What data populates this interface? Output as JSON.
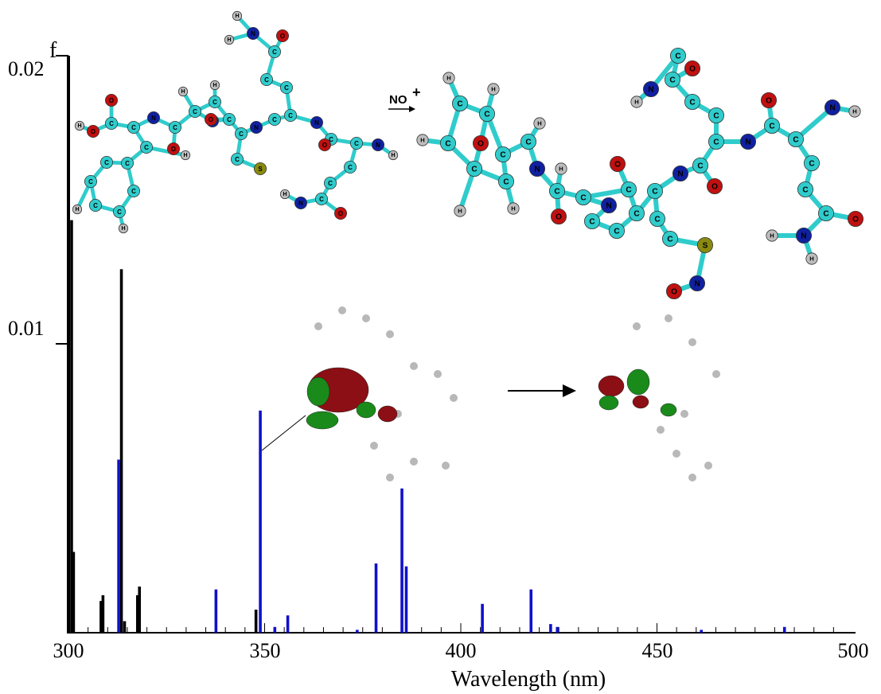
{
  "chart_data": {
    "type": "bar",
    "xlabel": "Wavelength (nm)",
    "ylabel": "f",
    "xlim": [
      300,
      500
    ],
    "ylim": [
      0,
      0.02
    ],
    "x_ticks": [
      "300",
      "350",
      "400",
      "450",
      "500"
    ],
    "y_ticks": [
      "0.01",
      "0.02"
    ],
    "grid": false,
    "series": [
      {
        "color": "#000000",
        "x": [
          300.8,
          301.3,
          308.3,
          308.8,
          313.5,
          314.3,
          317.6,
          318.1,
          347.8
        ],
        "y": [
          0.0143,
          0.0028,
          0.0011,
          0.0013,
          0.0126,
          0.0004,
          0.0013,
          0.0016,
          0.0008
        ]
      },
      {
        "color": "#1010cc",
        "x": [
          312.8,
          337.6,
          348.9,
          352.6,
          355.9,
          373.6,
          378.4,
          385.0,
          386.1,
          405.5,
          417.9,
          422.9,
          424.6,
          461.3,
          482.5
        ],
        "y": [
          0.006,
          0.0015,
          0.0077,
          0.0002,
          0.0006,
          0.0001,
          0.0024,
          0.005,
          0.0023,
          0.001,
          0.0015,
          0.0003,
          0.0002,
          0.0001,
          0.0002
        ]
      }
    ],
    "annotations": [
      "NO+",
      "S",
      "N",
      "O",
      "C",
      "H"
    ]
  },
  "molecules": {
    "reaction_label": "NO",
    "reaction_superscript": "+",
    "atom_labels": {
      "S": "S",
      "N": "N",
      "O": "O",
      "C": "C",
      "H": "H"
    }
  },
  "colors": {
    "carbon": "#30cccc",
    "oxygen": "#c01010",
    "nitrogen": "#1020a0",
    "sulfur": "#8a8a10",
    "hydrogen": "#bdbdbd",
    "orbital_red": "#8b0f14",
    "orbital_green": "#1a8a1a"
  }
}
